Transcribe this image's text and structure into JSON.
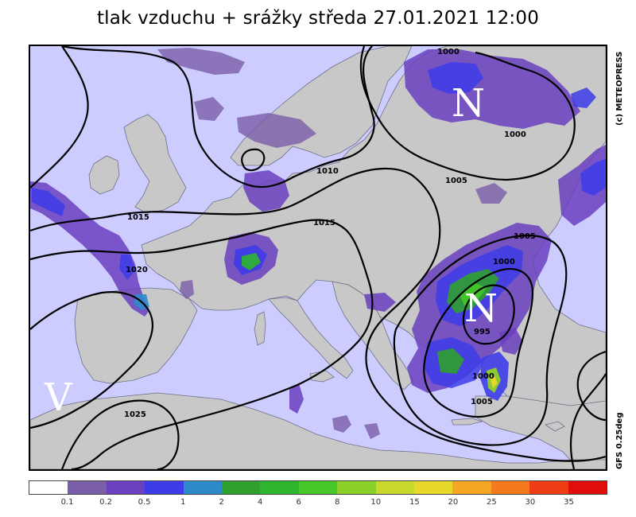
{
  "title": "tlak vzduchu + srážky  středa 27.01.2021 12:00",
  "copyright": "(c) METEOPRESS",
  "model": "GFS  0.25deg",
  "colors": {
    "sea": "#ccccff",
    "land": "#c8c8c8",
    "isobar": "#000000",
    "precip_light": "#7b5ea8",
    "precip_mid": "#6a3fc0",
    "precip_blue": "#3d3ce8",
    "precip_green": "#2eb52e"
  },
  "legend": {
    "colors": [
      "#ffffff",
      "#7b5ea8",
      "#6a3fc0",
      "#3d3ce8",
      "#2f8acc",
      "#2ea02e",
      "#2eb52e",
      "#46c828",
      "#8cd02a",
      "#c8d82c",
      "#e8d82c",
      "#f5a623",
      "#f57a1c",
      "#f03c14",
      "#e00d0d"
    ],
    "labels": [
      "0.1",
      "0.2",
      "0.5",
      "1",
      "2",
      "4",
      "6",
      "8",
      "10",
      "15",
      "20",
      "25",
      "30",
      "35"
    ]
  },
  "pressure_centers": [
    {
      "letter": "N",
      "type": "low"
    },
    {
      "letter": "N",
      "type": "low"
    },
    {
      "letter": "V",
      "type": "high"
    }
  ],
  "isobar_labels": [
    "1000",
    "1000",
    "1005",
    "1010",
    "1015",
    "1015",
    "1020",
    "1005",
    "1000",
    "995",
    "1000",
    "1005",
    "1025"
  ]
}
